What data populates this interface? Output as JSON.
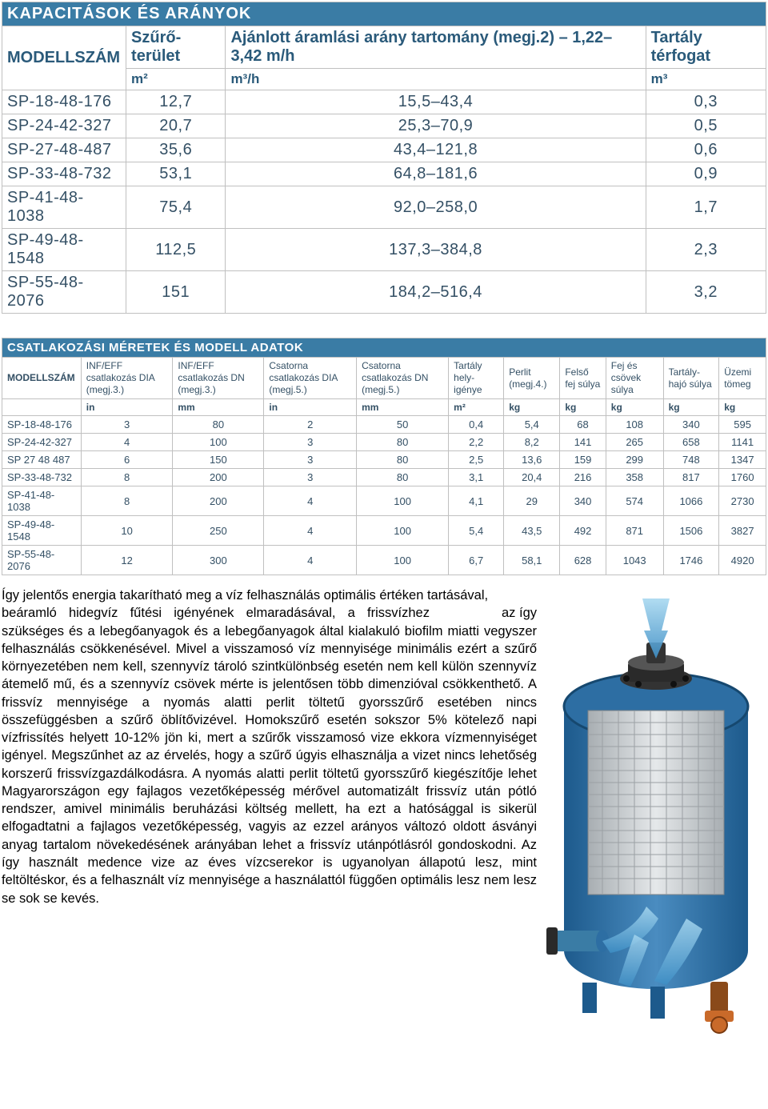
{
  "table1": {
    "title": "KAPACITÁSOK ÉS ARÁNYOK",
    "headers": {
      "model": "MODELLSZÁM",
      "area": "Szűrő­terület",
      "flow": "Ajánlott áramlási arány tartomány (megj.2) – 1,22–3,42 m/h",
      "volume": "Tartály térfogat",
      "area_unit": "m²",
      "flow_unit": "m³/h",
      "volume_unit": "m³"
    },
    "rows": [
      {
        "model": "SP-18-48-176",
        "area": "12,7",
        "flow": "15,5–43,4",
        "vol": "0,3"
      },
      {
        "model": "SP-24-42-327",
        "area": "20,7",
        "flow": "25,3–70,9",
        "vol": "0,5"
      },
      {
        "model": "SP-27-48-487",
        "area": "35,6",
        "flow": "43,4–121,8",
        "vol": "0,6"
      },
      {
        "model": "SP-33-48-732",
        "area": "53,1",
        "flow": "64,8–181,6",
        "vol": "0,9"
      },
      {
        "model": "SP-41-48-1038",
        "area": "75,4",
        "flow": "92,0–258,0",
        "vol": "1,7"
      },
      {
        "model": "SP-49-48-1548",
        "area": "112,5",
        "flow": "137,3–384,8",
        "vol": "2,3"
      },
      {
        "model": "SP-55-48-2076",
        "area": "151",
        "flow": "184,2–516,4",
        "vol": "3,2"
      }
    ]
  },
  "table2": {
    "title": "CSATLAKOZÁSI MÉRETEK ÉS MODELL ADATOK",
    "headers": {
      "model": "MODELLSZÁM",
      "c1": "INF/EFF csatlakozás DIA (megj.3.)",
      "c2": "INF/EFF csatlakozás DN (megj.3.)",
      "c3": "Csatorna csatlakozás DIA (megj.5.)",
      "c4": "Csatorna csatlakozás DN (megj.5.)",
      "c5": "Tartály hely-igénye",
      "c6": "Perlit (megj.4.)",
      "c7": "Felső fej súlya",
      "c8": "Fej és csövek súlya",
      "c9": "Tartály-hajó súlya",
      "c10": "Üzemi tömeg"
    },
    "units": [
      "",
      "in",
      "mm",
      "in",
      "mm",
      "m²",
      "kg",
      "kg",
      "kg",
      "kg",
      "kg"
    ],
    "rows": [
      {
        "m": "SP-18-48-176",
        "v": [
          "3",
          "80",
          "2",
          "50",
          "0,4",
          "5,4",
          "68",
          "108",
          "340",
          "595"
        ]
      },
      {
        "m": "SP-24-42-327",
        "v": [
          "4",
          "100",
          "3",
          "80",
          "2,2",
          "8,2",
          "141",
          "265",
          "658",
          "1141"
        ]
      },
      {
        "m": "SP 27 48 487",
        "v": [
          "6",
          "150",
          "3",
          "80",
          "2,5",
          "13,6",
          "159",
          "299",
          "748",
          "1347"
        ]
      },
      {
        "m": "SP-33-48-732",
        "v": [
          "8",
          "200",
          "3",
          "80",
          "3,1",
          "20,4",
          "216",
          "358",
          "817",
          "1760"
        ]
      },
      {
        "m": "SP-41-48-1038",
        "v": [
          "8",
          "200",
          "4",
          "100",
          "4,1",
          "29",
          "340",
          "574",
          "1066",
          "2730"
        ]
      },
      {
        "m": "SP-49-48-1548",
        "v": [
          "10",
          "250",
          "4",
          "100",
          "5,4",
          "43,5",
          "492",
          "871",
          "1506",
          "3827"
        ]
      },
      {
        "m": "SP-55-48-2076",
        "v": [
          "12",
          "300",
          "4",
          "100",
          "6,7",
          "58,1",
          "628",
          "1043",
          "1746",
          "4920"
        ]
      }
    ]
  },
  "paragraph": {
    "lead": "Így jelentős energia takarítható meg a víz felhasználás optimális értéken tartásával,",
    "tail_word": "az így",
    "rest": "beáramló hidegvíz fűtési igényének elmaradásával, a frissvízhez szükséges és a lebegőanyagok és a lebegőanyagok által kialakuló biofilm miatti vegyszer felhasználás csökkenésével. Mivel a visszamosó víz mennyisége minimális ezért a szűrő környezetében nem kell, szennyvíz tároló szintkülönbség esetén nem kell külön szennyvíz átemelő mű, és a szennyvíz csövek mérte is jelentősen több dimenzióval csökkenthető. A frissvíz mennyisége a nyomás alatti perlit töltetű gyorsszűrő esetében nincs összefüggésben a szűrő öblítővizével. Homokszűrő esetén sokszor 5% kötelező napi vízfrissítés helyett 10-12% jön ki, mert a szűrők visszamosó vize ekkora vízmennyiséget igényel. Megszűnhet az az érvelés, hogy a szűrő úgyis elhasználja a vizet nincs lehetőség korszerű frissvízgazdálkodásra. A nyomás alatti perlit töltetű gyorsszűrő kiegészítője lehet Magyarországon egy fajlagos vezetőképesség mérővel automatizált frissvíz után pótló rendszer, amivel minimális beruházási költség mellett, ha ezt a hatósággal is sikerül elfogadtatni a fajlagos vezetőképesség, vagyis az ezzel arányos változó oldott ásványi anyag tartalom növekedésének arányában lehet a frissvíz utánpótlásról gondoskodni. Az így használt medence vize az éves vízcserekor is ugyanolyan állapotú lesz, mint feltöltéskor, és a felhasznált víz mennyisége a használattól függően optimális lesz nem lesz se sok se kevés."
  },
  "colors": {
    "header_bg": "#3a7ca5",
    "header_fg": "#ffffff",
    "border": "#c0c0c0",
    "cell_text": "#345065",
    "vessel_blue": "#2d6ea3",
    "vessel_grey": "#c8cdd0",
    "arrow_blue": "#6fb8e0"
  }
}
